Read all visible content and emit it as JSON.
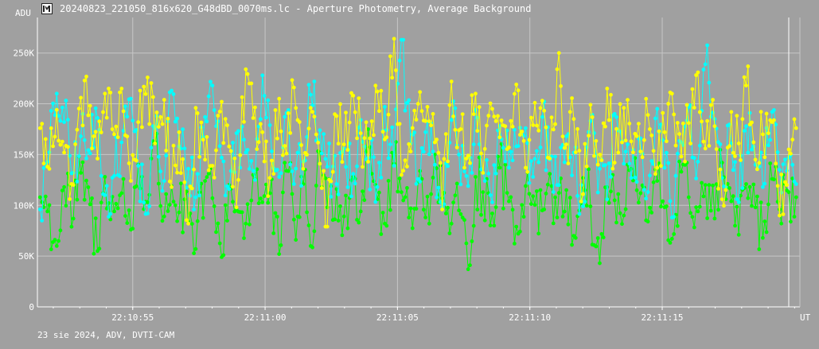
{
  "window": {
    "title": "20240823_221050_816x620_G48dBD_0070ms.lc - Aperture Photometry, Average Background",
    "icon": "lightcurve-app-icon"
  },
  "footer": {
    "text": "23 sie 2024, ADV, DVTI-CAM"
  },
  "chart_data": {
    "type": "line",
    "title": "20240823_221050_816x620_G48dBD_0070ms.lc - Aperture Photometry, Average Background",
    "ylabel": "ADU",
    "xlabel": "UT",
    "ylim": [
      0,
      285000
    ],
    "xlim": [
      "22:10:51.4",
      "22:11:20.2"
    ],
    "y_ticks": [
      {
        "value": 0,
        "label": "0"
      },
      {
        "value": 50000,
        "label": "50K"
      },
      {
        "value": 100000,
        "label": "100K"
      },
      {
        "value": 150000,
        "label": "150K"
      },
      {
        "value": 200000,
        "label": "200K"
      },
      {
        "value": 250000,
        "label": "250K"
      }
    ],
    "x_ticks": [
      {
        "value": "22:10:55",
        "label": "22:10:55"
      },
      {
        "value": "22:11:00",
        "label": "22:11:00"
      },
      {
        "value": "22:11:05",
        "label": "22:11:05"
      },
      {
        "value": "22:11:10",
        "label": "22:11:10"
      },
      {
        "value": "22:11:15",
        "label": "22:11:15"
      }
    ],
    "grid": true,
    "legend": "none",
    "point_interval_s": 0.07,
    "first_point": "22:10:51.50",
    "series": [
      {
        "color": "#ffff00",
        "sampled_values": [
          176000,
          138000,
          194000,
          152000,
          120000,
          206000,
          198000,
          146000,
          210000,
          170000,
          215000,
          124000,
          182000,
          226000,
          161000,
          204000,
          118000,
          172000,
          82000,
          196000,
          145000,
          139000,
          202000,
          158000,
          98000,
          234000,
          186000,
          172000,
          127000,
          205000,
          151000,
          216000,
          136000,
          196000,
          141000,
          79000,
          188000,
          160000,
          208000,
          171000,
          143000,
          212000,
          165000,
          264000,
          130000,
          153000,
          200000,
          183000,
          162000,
          96000,
          222000,
          174000,
          149000,
          210000,
          132000,
          195000,
          167000,
          157000,
          219000,
          137000,
          179000,
          203000,
          146000,
          234000,
          160000,
          185000,
          111000,
          199000,
          150000,
          215000,
          142000,
          196000,
          163000,
          153000,
          189000,
          137000,
          172000,
          210000,
          148000,
          181000,
          231000,
          156000,
          178000,
          106000,
          192000,
          161000,
          218000,
          145000,
          170000,
          182000,
          90000,
          155000,
          176000
        ],
        "range": [
          79000,
          264000
        ]
      },
      {
        "color": "#00ffff",
        "sampled_values": [
          96000,
          143000,
          210000,
          182000,
          132000,
          168000,
          151000,
          186000,
          110000,
          129000,
          162000,
          205000,
          139000,
          92000,
          176000,
          124000,
          213000,
          158000,
          136000,
          108000,
          187000,
          218000,
          147000,
          116000,
          171000,
          152000,
          134000,
          228000,
          179000,
          128000,
          191000,
          121000,
          143000,
          209000,
          174000,
          138000,
          121000,
          156000,
          131000,
          184000,
          147000,
          118000,
          197000,
          139000,
          263000,
          161000,
          126000,
          172000,
          140000,
          98000,
          184000,
          150000,
          119000,
          194000,
          132000,
          103000,
          178000,
          137000,
          158000,
          176000,
          128000,
          187000,
          145000,
          120000,
          168000,
          152000,
          99000,
          183000,
          136000,
          106000,
          190000,
          141000,
          127000,
          166000,
          113000,
          195000,
          137000,
          88000,
          162000,
          197000,
          143000,
          239000,
          185000,
          127000,
          161000,
          103000,
          178000,
          140000,
          118000,
          192000,
          135000,
          147000,
          121000
        ],
        "range": [
          85000,
          263000
        ]
      },
      {
        "color": "#00ff00",
        "sampled_values": [
          108000,
          94000,
          60000,
          118000,
          87000,
          132000,
          101000,
          55000,
          128000,
          94000,
          112000,
          76000,
          140000,
          103000,
          162000,
          89000,
          119000,
          93000,
          84000,
          57000,
          124000,
          107000,
          49000,
          120000,
          96000,
          82000,
          130000,
          103000,
          112000,
          52000,
          134000,
          86000,
          121000,
          60000,
          152000,
          98000,
          116000,
          89000,
          128000,
          94000,
          175000,
          106000,
          82000,
          141000,
          113000,
          97000,
          123000,
          88000,
          150000,
          107000,
          82000,
          95000,
          37000,
          128000,
          113000,
          92000,
          137000,
          104000,
          79000,
          119000,
          109000,
          95000,
          131000,
          88000,
          115000,
          70000,
          127000,
          99000,
          43000,
          118000,
          105000,
          90000,
          136000,
          112000,
          84000,
          124000,
          98000,
          67000,
          133000,
          108000,
          94000,
          120000,
          87000,
          142000,
          104000,
          71000,
          121000,
          98000,
          68000,
          126000,
          96000,
          113000,
          108000
        ],
        "range": [
          37000,
          175000
        ]
      }
    ]
  }
}
